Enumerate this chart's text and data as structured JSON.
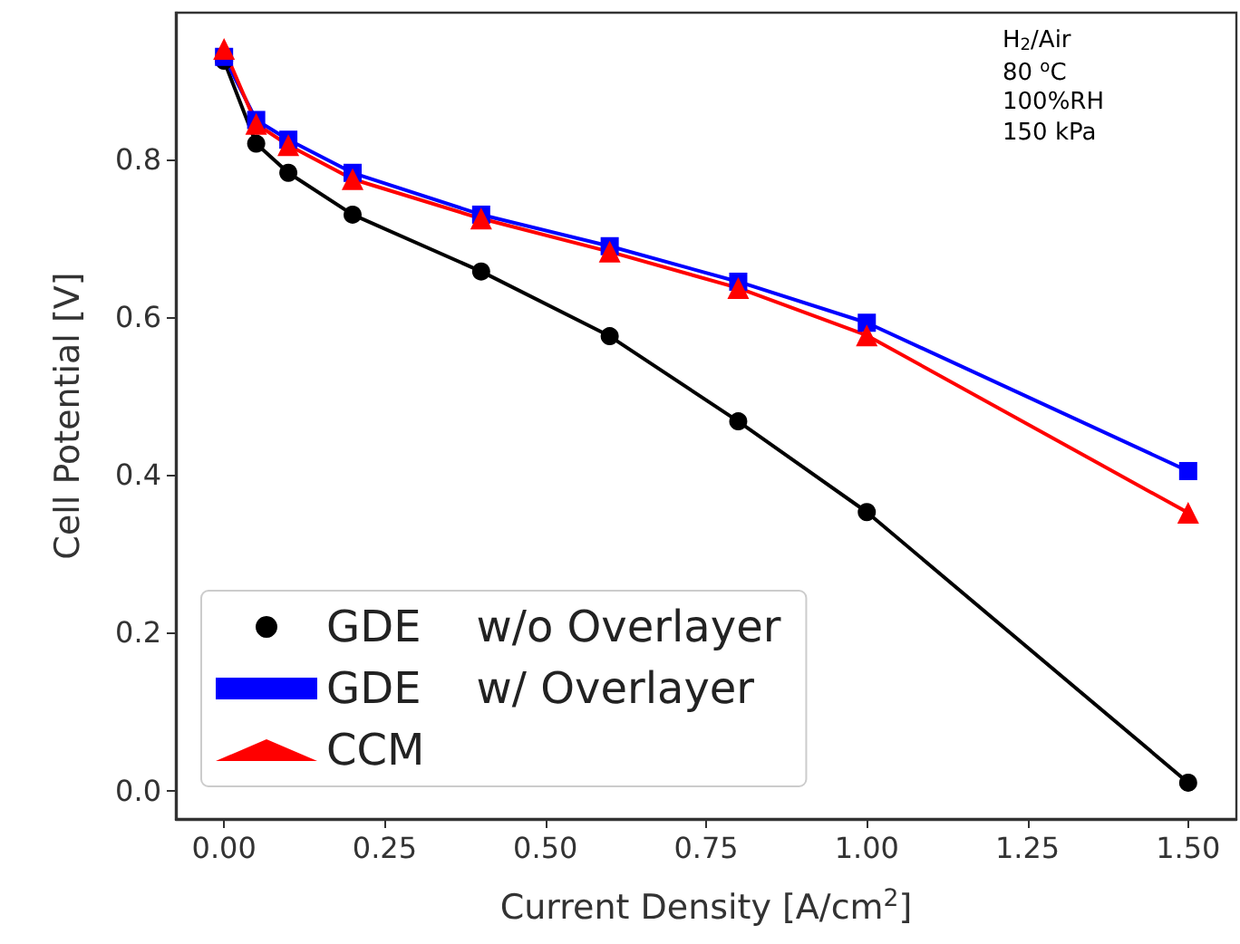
{
  "chart_data": {
    "type": "line",
    "xlabel": "Current Density [A/cm$^{2}$]",
    "ylabel": "Cell Potential [V]",
    "annotations": [
      "H$_{2}$/Air",
      "80 $^{o}$C",
      "100%RH",
      "150 kPa"
    ],
    "x": [
      0,
      0.05,
      0.1,
      0.2,
      0.4,
      0.6,
      0.8,
      1.0,
      1.5
    ],
    "series": [
      {
        "name": "GDE    w/o Overlayer",
        "color": "#000000",
        "marker": "circle",
        "values": [
          0.925,
          0.82,
          0.783,
          0.73,
          0.658,
          0.576,
          0.468,
          0.353,
          0.01
        ]
      },
      {
        "name": "GDE    w/ Overlayer",
        "color": "#0000ff",
        "marker": "square",
        "values": [
          0.93,
          0.85,
          0.825,
          0.783,
          0.73,
          0.69,
          0.645,
          0.593,
          0.405
        ]
      },
      {
        "name": "CCM",
        "color": "#ff0000",
        "marker": "triangle",
        "values": [
          0.94,
          0.845,
          0.818,
          0.775,
          0.725,
          0.683,
          0.637,
          0.577,
          0.352
        ]
      }
    ],
    "xlim": [
      -0.075,
      1.575
    ],
    "ylim": [
      -0.036,
      0.986
    ],
    "xticks": [
      {
        "value": 0,
        "label": "0.00"
      },
      {
        "value": 0.25,
        "label": "0.25"
      },
      {
        "value": 0.5,
        "label": "0.50"
      },
      {
        "value": 0.75,
        "label": "0.75"
      },
      {
        "value": 1,
        "label": "1.00"
      },
      {
        "value": 1.25,
        "label": "1.25"
      },
      {
        "value": 1.5,
        "label": "1.50"
      }
    ],
    "yticks": [
      {
        "value": 0,
        "label": "0.0"
      },
      {
        "value": 0.2,
        "label": "0.2"
      },
      {
        "value": 0.4,
        "label": "0.4"
      },
      {
        "value": 0.6,
        "label": "0.6"
      },
      {
        "value": 0.8,
        "label": "0.8"
      }
    ],
    "grid": false,
    "legend": "bottom left",
    "line_style": "solid"
  }
}
